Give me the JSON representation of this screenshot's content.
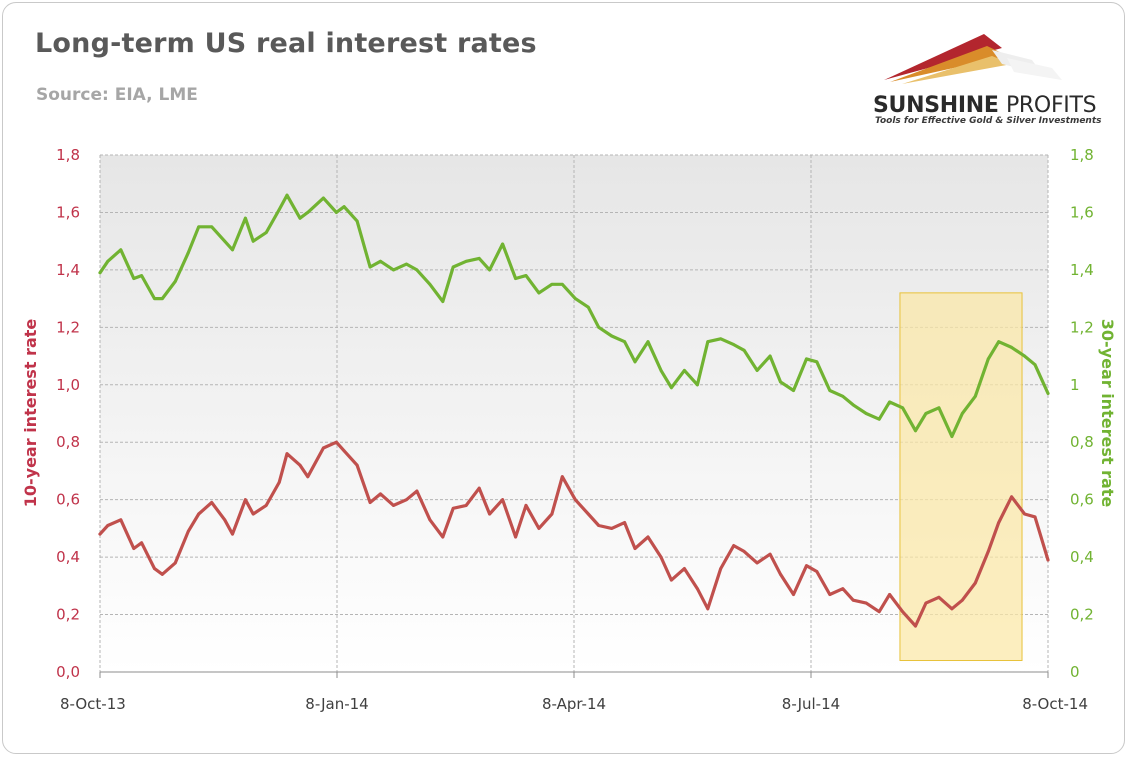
{
  "header": {
    "title": "Long-term US real interest rates",
    "subtitle": "Source: EIA, LME"
  },
  "logo": {
    "name_bold": "SUNSHINE",
    "name_regular": "PROFITS",
    "tagline": "Tools for Effective Gold & Silver Investments"
  },
  "colors": {
    "series_10y": "#c0504d",
    "series_30y": "#71b332",
    "left_axis": "#c0334a",
    "right_axis": "#71b332",
    "highlight_fill": "#fbe8a6",
    "highlight_border": "#e8c23a"
  },
  "chart_data": {
    "type": "line",
    "title": "Long-term US real interest rates",
    "subtitle": "Source: EIA, LME",
    "x_tick_labels": [
      "8-Oct-13",
      "8-Jan-14",
      "8-Apr-14",
      "8-Jul-14",
      "8-Oct-14"
    ],
    "x_range": [
      "2013-10-08",
      "2014-10-08"
    ],
    "ylabel_left": "10-year interest rate",
    "ylabel_right": "30-year interest rate",
    "y_left_ticks": [
      "0,0",
      "0,2",
      "0,4",
      "0,6",
      "0,8",
      "1,0",
      "1,2",
      "1,4",
      "1,6",
      "1,8"
    ],
    "y_right_ticks": [
      "0",
      "0,2",
      "0,4",
      "0,6",
      "0,8",
      "1",
      "1,2",
      "1,4",
      "1,6",
      "1,8"
    ],
    "ylim": [
      0,
      1.8
    ],
    "grid": true,
    "highlight_region": {
      "x_start": "2014-08-12",
      "x_end": "2014-09-28",
      "y_start": 0.04,
      "y_end": 1.32
    },
    "series": [
      {
        "axis": "left",
        "x": [
          "2013-10-08",
          "2013-10-11",
          "2013-10-16",
          "2013-10-21",
          "2013-10-24",
          "2013-10-29",
          "2013-11-01",
          "2013-11-06",
          "2013-11-11",
          "2013-11-15",
          "2013-11-20",
          "2013-11-25",
          "2013-11-28",
          "2013-12-03",
          "2013-12-06",
          "2013-12-11",
          "2013-12-16",
          "2013-12-19",
          "2013-12-24",
          "2013-12-27",
          "2014-01-02",
          "2014-01-07",
          "2014-01-10",
          "2014-01-15",
          "2014-01-20",
          "2014-01-24",
          "2014-01-29",
          "2014-02-03",
          "2014-02-07",
          "2014-02-12",
          "2014-02-17",
          "2014-02-21",
          "2014-02-26",
          "2014-03-03",
          "2014-03-07",
          "2014-03-12",
          "2014-03-17",
          "2014-03-21",
          "2014-03-26",
          "2014-03-31",
          "2014-04-04",
          "2014-04-09",
          "2014-04-14",
          "2014-04-18",
          "2014-04-23",
          "2014-04-28",
          "2014-05-02",
          "2014-05-07",
          "2014-05-12",
          "2014-05-16",
          "2014-05-21",
          "2014-05-26",
          "2014-05-30",
          "2014-06-04",
          "2014-06-09",
          "2014-06-13",
          "2014-06-18",
          "2014-06-23",
          "2014-06-27",
          "2014-07-02",
          "2014-07-07",
          "2014-07-11",
          "2014-07-16",
          "2014-07-21",
          "2014-07-25",
          "2014-07-30",
          "2014-08-04",
          "2014-08-08",
          "2014-08-13",
          "2014-08-18",
          "2014-08-22",
          "2014-08-27",
          "2014-09-01",
          "2014-09-05",
          "2014-09-10",
          "2014-09-15",
          "2014-09-19",
          "2014-09-24",
          "2014-09-29",
          "2014-10-03",
          "2014-10-08"
        ],
        "values": [
          0.48,
          0.51,
          0.53,
          0.43,
          0.45,
          0.36,
          0.34,
          0.38,
          0.49,
          0.55,
          0.59,
          0.53,
          0.48,
          0.6,
          0.55,
          0.58,
          0.66,
          0.76,
          0.72,
          0.68,
          0.78,
          0.8,
          0.77,
          0.72,
          0.59,
          0.62,
          0.58,
          0.6,
          0.63,
          0.53,
          0.47,
          0.57,
          0.58,
          0.64,
          0.55,
          0.6,
          0.47,
          0.58,
          0.5,
          0.55,
          0.68,
          0.6,
          0.55,
          0.51,
          0.5,
          0.52,
          0.43,
          0.47,
          0.4,
          0.32,
          0.36,
          0.29,
          0.22,
          0.36,
          0.44,
          0.42,
          0.38,
          0.41,
          0.34,
          0.27,
          0.37,
          0.35,
          0.27,
          0.29,
          0.25,
          0.24,
          0.21,
          0.27,
          0.21,
          0.16,
          0.24,
          0.26,
          0.22,
          0.25,
          0.31,
          0.42,
          0.52,
          0.61,
          0.55,
          0.54,
          0.39
        ]
      },
      {
        "axis": "right",
        "x": [
          "2013-10-08",
          "2013-10-11",
          "2013-10-16",
          "2013-10-21",
          "2013-10-24",
          "2013-10-29",
          "2013-11-01",
          "2013-11-06",
          "2013-11-11",
          "2013-11-15",
          "2013-11-20",
          "2013-11-25",
          "2013-11-28",
          "2013-12-03",
          "2013-12-06",
          "2013-12-11",
          "2013-12-16",
          "2013-12-19",
          "2013-12-24",
          "2013-12-27",
          "2014-01-02",
          "2014-01-07",
          "2014-01-10",
          "2014-01-15",
          "2014-01-20",
          "2014-01-24",
          "2014-01-29",
          "2014-02-03",
          "2014-02-07",
          "2014-02-12",
          "2014-02-17",
          "2014-02-21",
          "2014-02-26",
          "2014-03-03",
          "2014-03-07",
          "2014-03-12",
          "2014-03-17",
          "2014-03-21",
          "2014-03-26",
          "2014-03-31",
          "2014-04-04",
          "2014-04-09",
          "2014-04-14",
          "2014-04-18",
          "2014-04-23",
          "2014-04-28",
          "2014-05-02",
          "2014-05-07",
          "2014-05-12",
          "2014-05-16",
          "2014-05-21",
          "2014-05-26",
          "2014-05-30",
          "2014-06-04",
          "2014-06-09",
          "2014-06-13",
          "2014-06-18",
          "2014-06-23",
          "2014-06-27",
          "2014-07-02",
          "2014-07-07",
          "2014-07-11",
          "2014-07-16",
          "2014-07-21",
          "2014-07-25",
          "2014-07-30",
          "2014-08-04",
          "2014-08-08",
          "2014-08-13",
          "2014-08-18",
          "2014-08-22",
          "2014-08-27",
          "2014-09-01",
          "2014-09-05",
          "2014-09-10",
          "2014-09-15",
          "2014-09-19",
          "2014-09-24",
          "2014-09-29",
          "2014-10-03",
          "2014-10-08"
        ],
        "values": [
          1.39,
          1.43,
          1.47,
          1.37,
          1.38,
          1.3,
          1.3,
          1.36,
          1.46,
          1.55,
          1.55,
          1.5,
          1.47,
          1.58,
          1.5,
          1.53,
          1.61,
          1.66,
          1.58,
          1.6,
          1.65,
          1.6,
          1.62,
          1.57,
          1.41,
          1.43,
          1.4,
          1.42,
          1.4,
          1.35,
          1.29,
          1.41,
          1.43,
          1.44,
          1.4,
          1.49,
          1.37,
          1.38,
          1.32,
          1.35,
          1.35,
          1.3,
          1.27,
          1.2,
          1.17,
          1.15,
          1.08,
          1.15,
          1.05,
          0.99,
          1.05,
          1.0,
          1.15,
          1.16,
          1.14,
          1.12,
          1.05,
          1.1,
          1.01,
          0.98,
          1.09,
          1.08,
          0.98,
          0.96,
          0.93,
          0.9,
          0.88,
          0.94,
          0.92,
          0.84,
          0.9,
          0.92,
          0.82,
          0.9,
          0.96,
          1.09,
          1.15,
          1.13,
          1.1,
          1.07,
          0.97
        ]
      }
    ]
  }
}
